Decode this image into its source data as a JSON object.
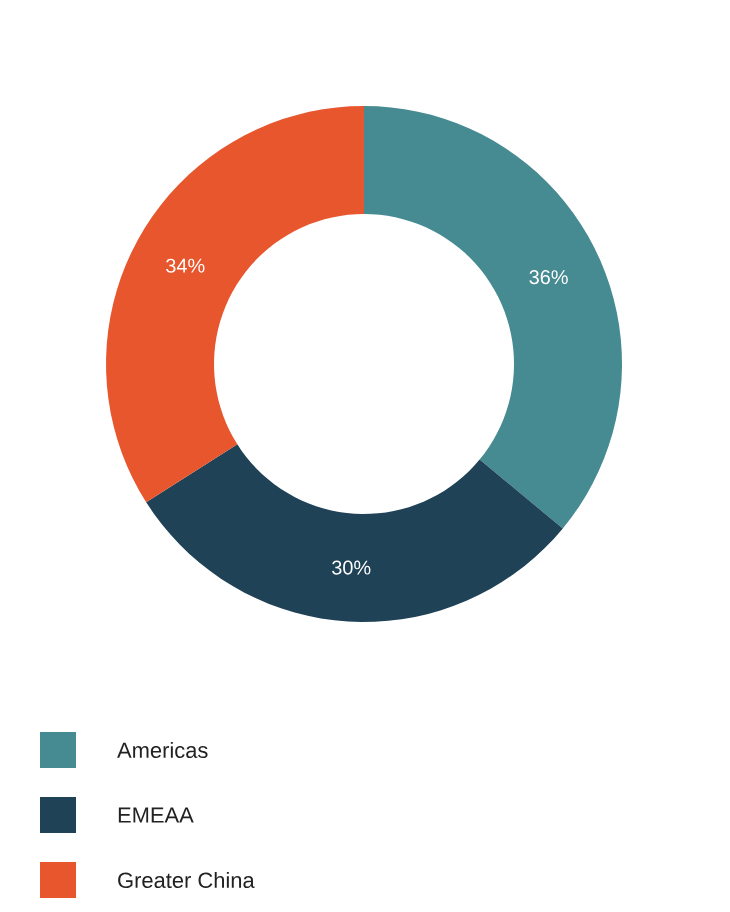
{
  "chart_data": {
    "type": "donut",
    "categories": [
      "Americas",
      "EMEAA",
      "Greater China"
    ],
    "values": [
      36,
      30,
      34
    ],
    "colors": [
      "#468a92",
      "#1f4257",
      "#e8562e"
    ],
    "value_labels": [
      "36%",
      "30%",
      "34%"
    ],
    "legend": "bottom"
  }
}
